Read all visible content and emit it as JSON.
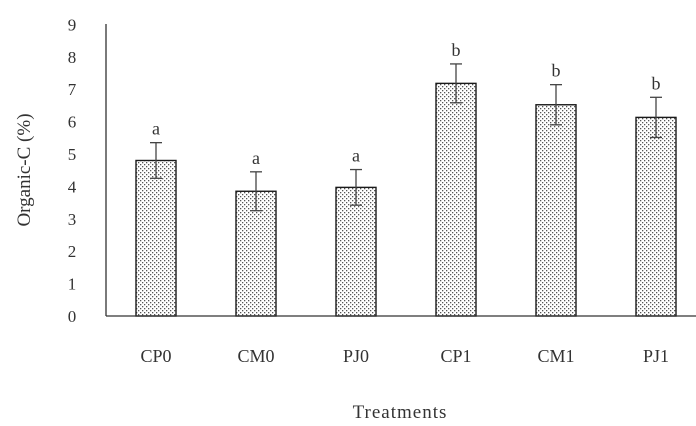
{
  "chart_data": {
    "type": "bar",
    "title": "",
    "xlabel": "Treatments",
    "ylabel": "Organic-C (%)",
    "ylim": [
      0,
      9
    ],
    "yticks": [
      "0",
      "1",
      "2",
      "3",
      "4",
      "5",
      "6",
      "7",
      "8",
      "9"
    ],
    "categories": [
      "CP0",
      "CM0",
      "PJ0",
      "CP1",
      "CM1",
      "PJ1"
    ],
    "values": [
      4.8,
      3.85,
      3.97,
      7.18,
      6.52,
      6.13
    ],
    "errors": [
      0.55,
      0.6,
      0.55,
      0.6,
      0.62,
      0.62
    ],
    "significance": [
      "a",
      "a",
      "a",
      "b",
      "b",
      "b"
    ],
    "grid": false,
    "legend": "none",
    "bar_fill": "#dcdcdc",
    "bar_pattern": "stippled",
    "bar_stroke": "#1a1a1a"
  }
}
